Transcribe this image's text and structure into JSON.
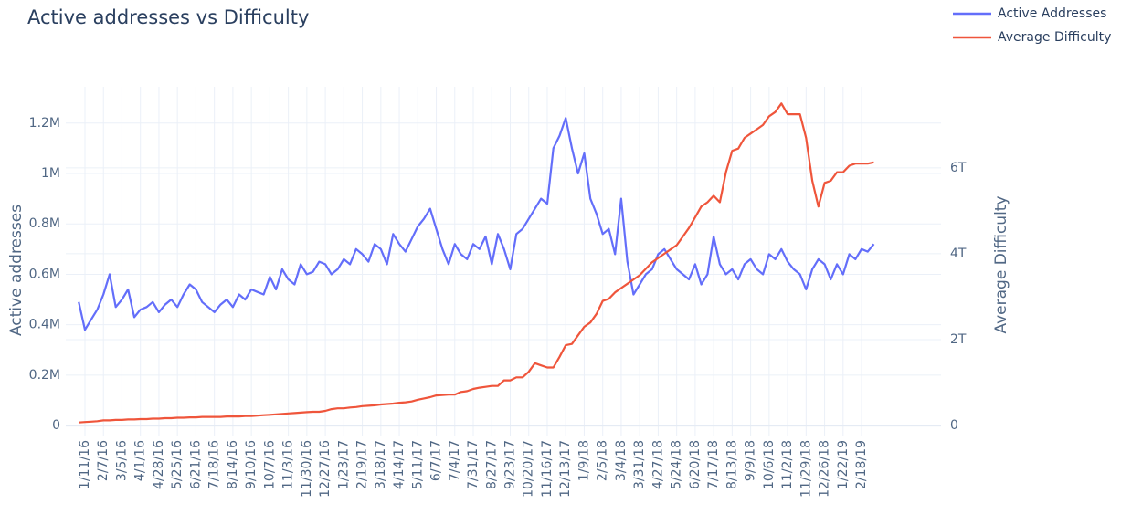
{
  "chart_data": {
    "type": "line",
    "title": "Active addresses vs Difficulty",
    "ylabel": "Active addresses",
    "y2label": "Average Difficulty",
    "x": [
      "1/2/16",
      "1/11/16",
      "1/20/16",
      "1/29/16",
      "2/7/16",
      "2/16/16",
      "2/25/16",
      "3/5/16",
      "3/14/16",
      "3/23/16",
      "4/1/16",
      "4/10/16",
      "4/19/16",
      "4/28/16",
      "5/7/16",
      "5/16/16",
      "5/25/16",
      "6/3/16",
      "6/12/16",
      "6/21/16",
      "6/30/16",
      "7/9/16",
      "7/18/16",
      "7/27/16",
      "8/5/16",
      "8/14/16",
      "8/23/16",
      "9/1/16",
      "9/10/16",
      "9/19/16",
      "9/28/16",
      "10/7/16",
      "10/16/16",
      "10/25/16",
      "11/3/16",
      "11/12/16",
      "11/21/16",
      "11/30/16",
      "12/9/16",
      "12/18/16",
      "12/27/16",
      "1/5/17",
      "1/14/17",
      "1/23/17",
      "2/1/17",
      "2/10/17",
      "2/19/17",
      "2/28/17",
      "3/9/17",
      "3/18/17",
      "3/27/17",
      "4/5/17",
      "4/14/17",
      "4/23/17",
      "5/2/17",
      "5/11/17",
      "5/20/17",
      "5/29/17",
      "6/7/17",
      "6/16/17",
      "6/25/17",
      "7/4/17",
      "7/13/17",
      "7/22/17",
      "7/31/17",
      "8/9/17",
      "8/18/17",
      "8/27/17",
      "9/5/17",
      "9/14/17",
      "9/23/17",
      "10/2/17",
      "10/11/17",
      "10/20/17",
      "10/29/17",
      "11/7/17",
      "11/16/17",
      "11/25/17",
      "12/4/17",
      "12/13/17",
      "12/22/17",
      "12/31/17",
      "1/9/18",
      "1/18/18",
      "1/27/18",
      "2/5/18",
      "2/14/18",
      "2/23/18",
      "3/4/18",
      "3/13/18",
      "3/22/18",
      "3/31/18",
      "4/9/18",
      "4/18/18",
      "4/27/18",
      "5/6/18",
      "5/15/18",
      "5/24/18",
      "6/2/18",
      "6/11/18",
      "6/20/18",
      "6/29/18",
      "7/8/18",
      "7/17/18",
      "7/26/18",
      "8/4/18",
      "8/13/18",
      "8/22/18",
      "8/31/18",
      "9/9/18",
      "9/18/18",
      "9/27/18",
      "10/6/18",
      "10/15/18",
      "10/24/18",
      "11/2/18",
      "11/11/18",
      "11/20/18",
      "11/29/18",
      "12/8/18",
      "12/17/18",
      "12/26/18",
      "1/4/19",
      "1/13/19",
      "1/22/19",
      "1/31/19",
      "2/9/19",
      "2/18/19",
      "2/27/19",
      "3/8/19"
    ],
    "series": [
      {
        "name": "Active Addresses",
        "color": "#636efa",
        "axis": "y",
        "values": [
          490000,
          380000,
          420000,
          460000,
          520000,
          600000,
          470000,
          500000,
          540000,
          430000,
          460000,
          470000,
          490000,
          450000,
          480000,
          500000,
          470000,
          520000,
          560000,
          540000,
          490000,
          470000,
          450000,
          480000,
          500000,
          470000,
          520000,
          500000,
          540000,
          530000,
          520000,
          590000,
          540000,
          620000,
          580000,
          560000,
          640000,
          600000,
          610000,
          650000,
          640000,
          600000,
          620000,
          660000,
          640000,
          700000,
          680000,
          650000,
          720000,
          700000,
          640000,
          760000,
          720000,
          690000,
          740000,
          790000,
          820000,
          860000,
          780000,
          700000,
          640000,
          720000,
          680000,
          660000,
          720000,
          700000,
          750000,
          640000,
          760000,
          700000,
          620000,
          760000,
          780000,
          820000,
          860000,
          900000,
          880000,
          1100000,
          1150000,
          1220000,
          1100000,
          1000000,
          1080000,
          900000,
          840000,
          760000,
          780000,
          680000,
          900000,
          650000,
          520000,
          560000,
          600000,
          620000,
          680000,
          700000,
          660000,
          620000,
          600000,
          580000,
          640000,
          560000,
          600000,
          750000,
          640000,
          600000,
          620000,
          580000,
          640000,
          660000,
          620000,
          600000,
          680000,
          660000,
          700000,
          650000,
          620000,
          600000,
          540000,
          620000,
          660000,
          640000,
          580000,
          640000,
          600000,
          680000,
          660000,
          700000,
          690000,
          720000
        ]
      },
      {
        "name": "Average Difficulty",
        "color": "#ef553b",
        "axis": "y2",
        "values": [
          70000000000.0,
          80000000000.0,
          90000000000.0,
          100000000000.0,
          120000000000.0,
          120000000000.0,
          130000000000.0,
          130000000000.0,
          140000000000.0,
          140000000000.0,
          150000000000.0,
          150000000000.0,
          160000000000.0,
          160000000000.0,
          170000000000.0,
          170000000000.0,
          180000000000.0,
          180000000000.0,
          190000000000.0,
          190000000000.0,
          200000000000.0,
          200000000000.0,
          200000000000.0,
          200000000000.0,
          210000000000.0,
          210000000000.0,
          210000000000.0,
          220000000000.0,
          220000000000.0,
          230000000000.0,
          240000000000.0,
          250000000000.0,
          260000000000.0,
          270000000000.0,
          280000000000.0,
          290000000000.0,
          300000000000.0,
          310000000000.0,
          320000000000.0,
          320000000000.0,
          340000000000.0,
          380000000000.0,
          400000000000.0,
          400000000000.0,
          420000000000.0,
          430000000000.0,
          450000000000.0,
          460000000000.0,
          470000000000.0,
          490000000000.0,
          500000000000.0,
          510000000000.0,
          530000000000.0,
          540000000000.0,
          560000000000.0,
          600000000000.0,
          630000000000.0,
          660000000000.0,
          700000000000.0,
          710000000000.0,
          720000000000.0,
          720000000000.0,
          780000000000.0,
          800000000000.0,
          850000000000.0,
          880000000000.0,
          900000000000.0,
          920000000000.0,
          920000000000.0,
          1050000000000.0,
          1050000000000.0,
          1120000000000.0,
          1120000000000.0,
          1250000000000.0,
          1450000000000.0,
          1400000000000.0,
          1350000000000.0,
          1350000000000.0,
          1600000000000.0,
          1870000000000.0,
          1900000000000.0,
          2100000000000.0,
          2300000000000.0,
          2400000000000.0,
          2600000000000.0,
          2900000000000.0,
          2950000000000.0,
          3100000000000.0,
          3200000000000.0,
          3300000000000.0,
          3400000000000.0,
          3500000000000.0,
          3650000000000.0,
          3800000000000.0,
          3900000000000.0,
          4000000000000.0,
          4100000000000.0,
          4200000000000.0,
          4400000000000.0,
          4600000000000.0,
          4850000000000.0,
          5100000000000.0,
          5200000000000.0,
          5350000000000.0,
          5200000000000.0,
          5900000000000.0,
          6400000000000.0,
          6450000000000.0,
          6700000000000.0,
          6800000000000.0,
          6900000000000.0,
          7000000000000.0,
          7200000000000.0,
          7300000000000.0,
          7500000000000.0,
          7250000000000.0,
          7250000000000.0,
          7250000000000.0,
          6700000000000.0,
          5700000000000.0,
          5100000000000.0,
          5650000000000.0,
          5700000000000.0,
          5900000000000.0,
          5900000000000.0,
          6050000000000.0,
          6100000000000.0,
          6100000000000.0,
          6100000000000.0,
          6130000000000.0
        ]
      }
    ],
    "xlim": [
      "12/14/15",
      "6/14/19"
    ],
    "xticks": [
      "1/11/16",
      "2/7/16",
      "3/5/16",
      "4/1/16",
      "4/28/16",
      "5/25/16",
      "6/21/16",
      "7/18/16",
      "8/14/16",
      "9/10/16",
      "10/7/16",
      "11/3/16",
      "11/30/16",
      "12/27/16",
      "1/23/17",
      "2/19/17",
      "3/18/17",
      "4/14/17",
      "5/11/17",
      "6/7/17",
      "7/4/17",
      "7/31/17",
      "8/27/17",
      "9/23/17",
      "10/20/17",
      "11/16/17",
      "12/13/17",
      "1/9/18",
      "2/5/18",
      "3/4/18",
      "3/31/18",
      "4/27/18",
      "5/24/18",
      "6/20/18",
      "7/17/18",
      "8/13/18",
      "9/9/18",
      "10/6/18",
      "11/2/18",
      "11/29/18",
      "12/26/18",
      "1/22/19",
      "2/18/19"
    ],
    "ylim": [
      -43000,
      1344000
    ],
    "yticks": [
      0,
      {
        "value": 200000,
        "label": "0.2M"
      },
      {
        "value": 400000,
        "label": "0.4M"
      },
      {
        "value": 600000,
        "label": "0.6M"
      },
      {
        "value": 800000,
        "label": "0.8M"
      },
      {
        "value": 1000000,
        "label": "1M"
      },
      {
        "value": 1200000,
        "label": "1.2M"
      }
    ],
    "y2lim": [
      -255000000000.0,
      7890000000000.0
    ],
    "y2ticks": [
      0,
      {
        "value": 2000000000000.0,
        "label": "2T"
      },
      {
        "value": 4000000000000.0,
        "label": "4T"
      },
      {
        "value": 6000000000000.0,
        "label": "6T"
      }
    ],
    "grid": true,
    "legend": "top-right"
  }
}
